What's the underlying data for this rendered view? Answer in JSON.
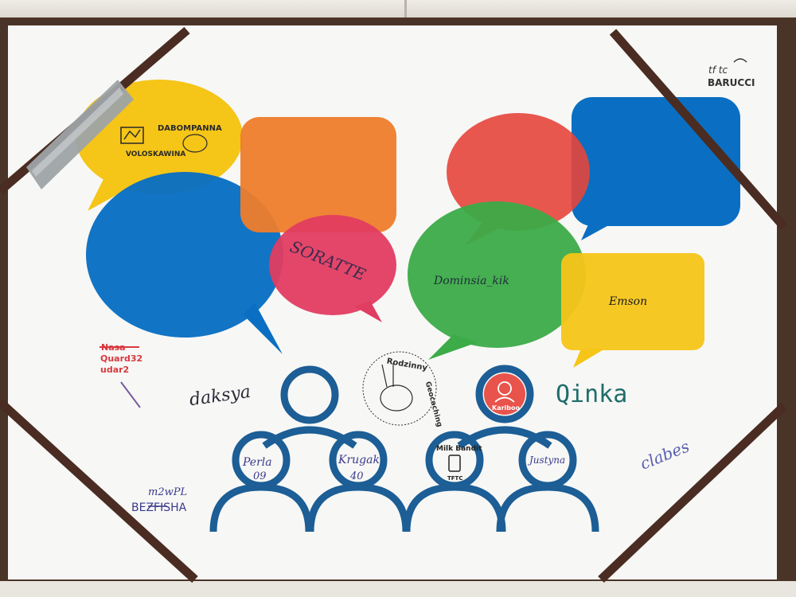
{
  "logo": {
    "line1": "tf  tc",
    "brand": "BARUCCI"
  },
  "stamp_yellow": {
    "line1": "DABOMPANNA",
    "line2": "VOLOSKAWINA"
  },
  "signatures": {
    "pink": "SORATTE",
    "green": "Dominsia_kik",
    "yellow": "Emson",
    "red_top": "Nasa",
    "red_mid": "Quard32",
    "red_bot": "udar2",
    "daksya": "daksya",
    "qinka": "Qinka",
    "clabes": "clabes",
    "mdw": "m2wPL",
    "bezfisha": "BEZFISHA",
    "perla": "Perla",
    "perla_num": "09",
    "krugak": "Krugak",
    "krugak_num": "40",
    "justyna": "Justyna"
  },
  "stamp_rabbit": {
    "title": "Rodzinny",
    "subtitle": "Geocaching"
  },
  "milk_bandit": {
    "label": "Milk Bandit",
    "sub": "TFTC"
  },
  "kariboo": {
    "label": "Kariboo"
  },
  "colors": {
    "yellow": "#f5c518",
    "orange": "#ee7d2b",
    "blue": "#0a6fc2",
    "pink": "#e13c61",
    "red": "#e5453c",
    "green": "#3cab48",
    "navy": "#1c5e95",
    "strap": "#4a2c22"
  }
}
